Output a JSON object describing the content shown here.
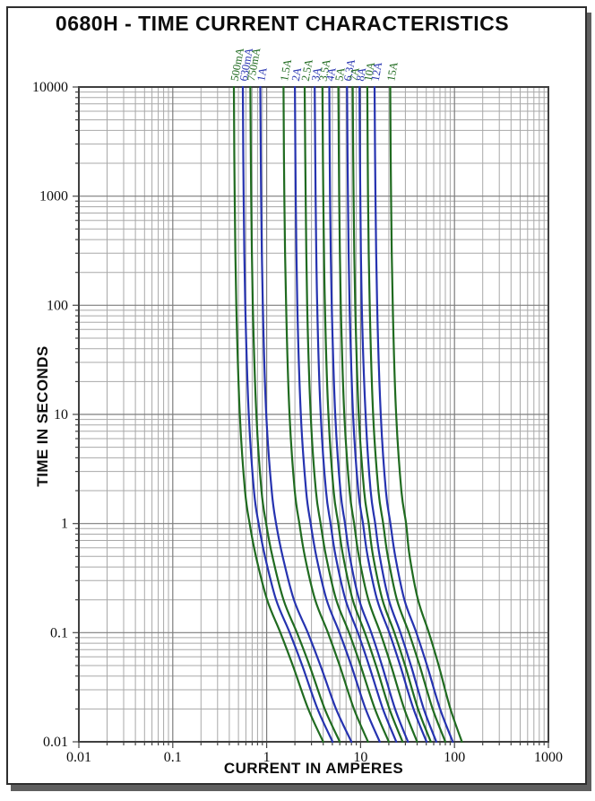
{
  "title": "0680H - TIME CURRENT CHARACTERISTICS",
  "chart_data": {
    "type": "line",
    "title": "0680H - TIME CURRENT CHARACTERISTICS",
    "x_axis": {
      "label": "CURRENT IN AMPERES",
      "scale": "log",
      "min": 0.01,
      "max": 1000,
      "tick_values": [
        0.01,
        0.1,
        1,
        10,
        100,
        1000
      ],
      "tick_labels": [
        "0.01",
        "0.1",
        "1",
        "10",
        "100",
        "1000"
      ]
    },
    "y_axis": {
      "label": "TIME IN SECONDS",
      "scale": "log",
      "min": 0.01,
      "max": 10000,
      "tick_values": [
        10000,
        1000,
        100,
        10,
        1,
        0.1,
        0.01
      ],
      "tick_labels": [
        "10000",
        "1000",
        "100",
        "10",
        "1",
        "0.1",
        "0.01"
      ]
    },
    "grid": true,
    "legend_position": "rotated-labels-above-curve-tops",
    "colors": {
      "green": "#206b20",
      "blue": "#2633b0",
      "grid_minor": "#a8a8a8",
      "grid_major": "#7d7d7d",
      "frame": "#3f3f3f",
      "text": "#0d0d0d"
    },
    "times_seconds": [
      10000,
      1000,
      100,
      10,
      2,
      1,
      0.5,
      0.2,
      0.1,
      0.05,
      0.02,
      0.01
    ],
    "series": [
      {
        "label": "500mA",
        "rating_amps": 0.5,
        "color": "green",
        "currents_amps": [
          0.447,
          0.456,
          0.475,
          0.517,
          0.588,
          0.658,
          0.769,
          1.01,
          1.4,
          1.9,
          2.77,
          4.0
        ]
      },
      {
        "label": "630mA",
        "rating_amps": 0.63,
        "color": "blue",
        "currents_amps": [
          0.557,
          0.568,
          0.592,
          0.645,
          0.732,
          0.82,
          0.959,
          1.26,
          1.76,
          2.39,
          3.48,
          5.04
        ]
      },
      {
        "label": "750mA",
        "rating_amps": 0.75,
        "color": "green",
        "currents_amps": [
          0.67,
          0.684,
          0.712,
          0.776,
          0.881,
          0.987,
          1.15,
          1.51,
          2.1,
          2.86,
          4.15,
          6.0
        ]
      },
      {
        "label": "1A",
        "rating_amps": 1,
        "color": "blue",
        "currents_amps": [
          0.855,
          0.873,
          0.909,
          0.99,
          1.13,
          1.26,
          1.48,
          1.95,
          2.74,
          3.74,
          5.48,
          8.0
        ]
      },
      {
        "label": "1.5A",
        "rating_amps": 1.5,
        "color": "green",
        "currents_amps": [
          1.51,
          1.54,
          1.61,
          1.75,
          1.99,
          2.23,
          2.55,
          3.28,
          4.49,
          5.99,
          8.5,
          12.0
        ]
      },
      {
        "label": "2A",
        "rating_amps": 2,
        "color": "blue",
        "currents_amps": [
          2.0,
          2.04,
          2.12,
          2.31,
          2.63,
          2.94,
          3.38,
          4.35,
          5.96,
          7.96,
          11.3,
          16.0
        ]
      },
      {
        "label": "2.5A",
        "rating_amps": 2.5,
        "color": "green",
        "currents_amps": [
          2.54,
          2.6,
          2.7,
          2.94,
          3.34,
          3.75,
          4.29,
          5.5,
          7.53,
          10.0,
          14.2,
          20.0
        ]
      },
      {
        "label": "3A",
        "rating_amps": 3,
        "color": "blue",
        "currents_amps": [
          3.25,
          3.32,
          3.45,
          3.76,
          4.28,
          4.79,
          5.43,
          6.91,
          9.35,
          12.3,
          17.3,
          24.0
        ]
      },
      {
        "label": "3.5A",
        "rating_amps": 3.5,
        "color": "green",
        "currents_amps": [
          3.92,
          4.01,
          4.17,
          4.54,
          5.16,
          5.78,
          6.53,
          8.25,
          11.1,
          14.6,
          20.3,
          28.0
        ]
      },
      {
        "label": "4A",
        "rating_amps": 4,
        "color": "blue",
        "currents_amps": [
          4.64,
          4.73,
          4.93,
          5.37,
          6.1,
          6.83,
          7.67,
          9.65,
          13.0,
          16.9,
          23.3,
          32.0
        ]
      },
      {
        "label": "5A",
        "rating_amps": 5,
        "color": "green",
        "currents_amps": [
          5.8,
          5.92,
          6.16,
          6.71,
          7.63,
          8.54,
          9.59,
          12.1,
          16.2,
          21.1,
          29.2,
          40.0
        ]
      },
      {
        "label": "6.3A",
        "rating_amps": 6.3,
        "color": "blue",
        "currents_amps": [
          7.18,
          7.33,
          7.64,
          8.32,
          9.45,
          10.6,
          11.9,
          15.0,
          20.2,
          26.4,
          36.6,
          50.4
        ]
      },
      {
        "label": "7A",
        "rating_amps": 7,
        "color": "green",
        "currents_amps": [
          8.25,
          8.42,
          8.77,
          9.55,
          10.9,
          12.2,
          13.6,
          17.1,
          22.9,
          29.8,
          40.9,
          56.0
        ]
      },
      {
        "label": "8A",
        "rating_amps": 8,
        "color": "blue",
        "currents_amps": [
          9.73,
          9.93,
          10.3,
          11.3,
          12.8,
          14.3,
          16.0,
          20.0,
          26.6,
          34.4,
          47.1,
          64.0
        ]
      },
      {
        "label": "10A",
        "rating_amps": 10,
        "color": "green",
        "currents_amps": [
          11.8,
          12.0,
          12.5,
          13.6,
          15.5,
          17.4,
          19.5,
          24.4,
          32.7,
          42.5,
          58.5,
          80.0
        ]
      },
      {
        "label": "12A",
        "rating_amps": 12,
        "color": "blue",
        "currents_amps": [
          14.1,
          14.4,
          15.0,
          16.4,
          18.6,
          20.8,
          23.4,
          29.3,
          39.2,
          51.0,
          70.2,
          96.0
        ]
      },
      {
        "label": "15A",
        "rating_amps": 15,
        "color": "green",
        "currents_amps": [
          20.7,
          21.1,
          22.0,
          23.9,
          27.2,
          30.5,
          33.3,
          40.9,
          53.4,
          67.9,
          90.5,
          120.0
        ]
      }
    ]
  }
}
